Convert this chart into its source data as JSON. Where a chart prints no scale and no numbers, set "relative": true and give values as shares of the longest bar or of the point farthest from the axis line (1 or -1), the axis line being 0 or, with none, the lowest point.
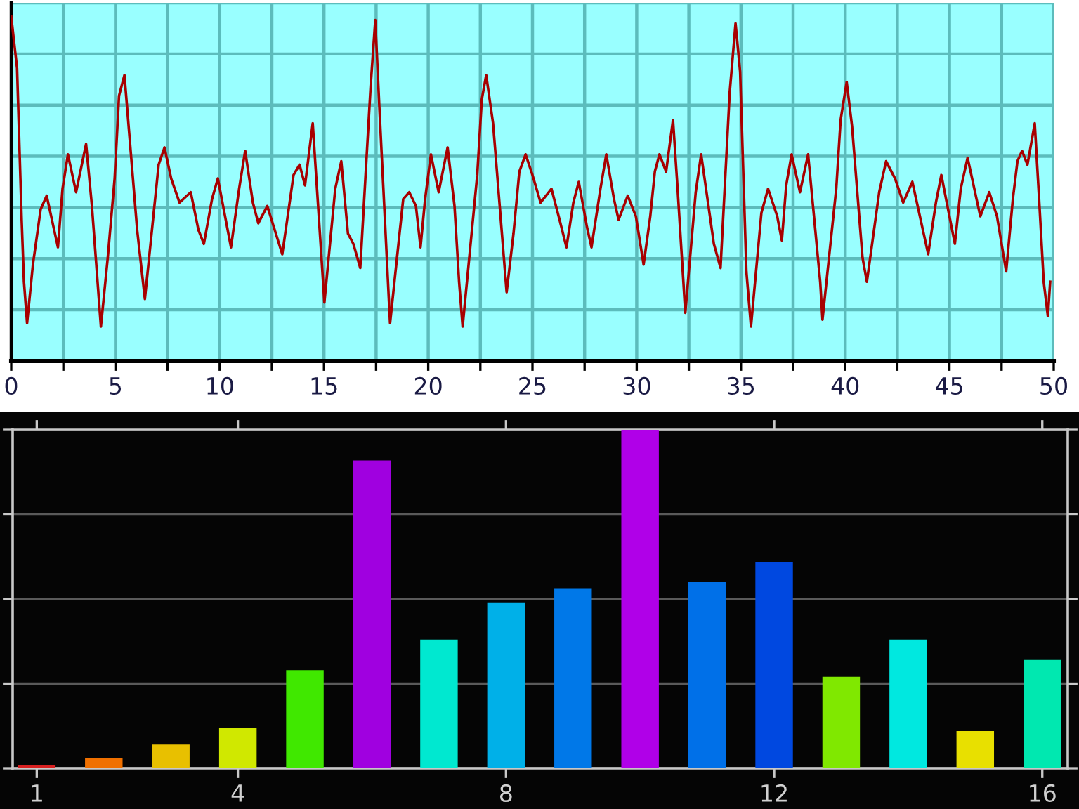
{
  "chart_data": [
    {
      "type": "line",
      "relative": true,
      "grid": true,
      "tick_labels": "x",
      "xlim": [
        0,
        50
      ],
      "xticks": [
        0,
        {
          "value": 2.5,
          "label": null
        },
        5,
        {
          "value": 7.5,
          "label": null
        },
        10,
        {
          "value": 12.5,
          "label": null
        },
        15,
        {
          "value": 17.5,
          "label": null
        },
        20,
        {
          "value": 22.5,
          "label": null
        },
        25,
        {
          "value": 27.5,
          "label": null
        },
        30,
        {
          "value": 32.5,
          "label": null
        },
        35,
        {
          "value": 37.5,
          "label": null
        },
        40,
        {
          "value": 42.5,
          "label": null
        },
        45,
        {
          "value": 47.5,
          "label": null
        },
        50
      ],
      "x": [
        0.0,
        0.28,
        0.5,
        0.61,
        0.76,
        1.04,
        1.41,
        1.7,
        2.24,
        2.46,
        2.72,
        3.11,
        3.59,
        3.87,
        4.3,
        4.63,
        4.96,
        5.17,
        5.43,
        6.04,
        6.41,
        7.07,
        7.35,
        7.67,
        8.07,
        8.61,
        8.98,
        9.24,
        9.63,
        9.91,
        10.54,
        10.93,
        11.22,
        11.59,
        11.85,
        12.28,
        13.0,
        13.54,
        13.83,
        14.09,
        14.46,
        14.74,
        15.02,
        15.54,
        15.83,
        16.15,
        16.41,
        16.74,
        17.24,
        17.46,
        17.67,
        18.11,
        18.17,
        18.8,
        19.09,
        19.41,
        19.63,
        19.85,
        20.13,
        20.5,
        20.93,
        21.26,
        21.48,
        21.65,
        22.35,
        22.57,
        22.78,
        23.11,
        23.76,
        24.09,
        24.37,
        24.67,
        25.0,
        25.39,
        25.91,
        26.3,
        26.63,
        26.96,
        27.22,
        27.61,
        27.83,
        28.26,
        28.54,
        28.91,
        29.13,
        29.57,
        29.96,
        30.33,
        30.65,
        30.87,
        31.09,
        31.41,
        31.74,
        31.96,
        32.33,
        32.83,
        33.09,
        33.7,
        34.02,
        34.46,
        34.74,
        34.96,
        35.26,
        35.48,
        35.98,
        36.3,
        36.74,
        36.96,
        37.17,
        37.43,
        37.83,
        38.22,
        38.8,
        38.91,
        39.57,
        39.78,
        40.07,
        40.33,
        40.83,
        41.04,
        41.63,
        41.96,
        42.39,
        42.78,
        43.22,
        43.98,
        44.35,
        44.61,
        45.0,
        45.26,
        45.54,
        45.87,
        46.3,
        46.48,
        46.91,
        47.28,
        47.72,
        48.04,
        48.26,
        48.48,
        48.74,
        49.09,
        49.3,
        49.52,
        49.72,
        49.83
      ],
      "series": [
        {
          "color": "#a80000",
          "values": [
            1.0,
            0.85,
            0.41,
            0.23,
            0.11,
            0.28,
            0.44,
            0.48,
            0.33,
            0.5,
            0.6,
            0.49,
            0.63,
            0.45,
            0.1,
            0.3,
            0.53,
            0.77,
            0.83,
            0.38,
            0.18,
            0.57,
            0.62,
            0.53,
            0.46,
            0.49,
            0.38,
            0.34,
            0.47,
            0.53,
            0.33,
            0.5,
            0.61,
            0.46,
            0.4,
            0.45,
            0.31,
            0.54,
            0.57,
            0.51,
            0.69,
            0.43,
            0.17,
            0.5,
            0.58,
            0.37,
            0.34,
            0.27,
            0.8,
            0.99,
            0.72,
            0.18,
            0.11,
            0.47,
            0.49,
            0.45,
            0.33,
            0.47,
            0.6,
            0.49,
            0.62,
            0.45,
            0.23,
            0.1,
            0.54,
            0.76,
            0.83,
            0.69,
            0.2,
            0.37,
            0.55,
            0.6,
            0.54,
            0.46,
            0.5,
            0.41,
            0.33,
            0.46,
            0.52,
            0.39,
            0.33,
            0.5,
            0.6,
            0.47,
            0.41,
            0.48,
            0.42,
            0.28,
            0.42,
            0.55,
            0.6,
            0.55,
            0.7,
            0.5,
            0.14,
            0.49,
            0.6,
            0.34,
            0.27,
            0.78,
            0.98,
            0.84,
            0.26,
            0.1,
            0.43,
            0.5,
            0.42,
            0.35,
            0.51,
            0.6,
            0.49,
            0.6,
            0.23,
            0.12,
            0.5,
            0.7,
            0.81,
            0.68,
            0.3,
            0.23,
            0.49,
            0.58,
            0.53,
            0.46,
            0.52,
            0.31,
            0.46,
            0.54,
            0.42,
            0.34,
            0.5,
            0.59,
            0.47,
            0.42,
            0.49,
            0.42,
            0.26,
            0.47,
            0.58,
            0.61,
            0.57,
            0.69,
            0.47,
            0.23,
            0.13,
            0.23
          ]
        }
      ]
    },
    {
      "type": "bar",
      "relative": true,
      "grid": "y",
      "tick_labels": "x",
      "xlim": [
        0.64,
        16.38
      ],
      "xticks": [
        1,
        4,
        8,
        12,
        16
      ],
      "x": [
        1,
        2,
        3,
        4,
        5,
        6,
        7,
        8,
        9,
        10,
        11,
        12,
        13,
        14,
        15,
        16
      ],
      "values": [
        0.01,
        0.03,
        0.07,
        0.12,
        0.29,
        0.91,
        0.38,
        0.49,
        0.53,
        1.0,
        0.55,
        0.61,
        0.27,
        0.38,
        0.11,
        0.32
      ],
      "colors": [
        "#d82020",
        "#f07000",
        "#e8c000",
        "#d0e800",
        "#40e800",
        "#a000e0",
        "#00e8d0",
        "#00b0e8",
        "#0078e8",
        "#b000e8",
        "#0070e8",
        "#0048e0",
        "#80e800",
        "#00e8e0",
        "#e8e000",
        "#00e8b0"
      ]
    }
  ]
}
